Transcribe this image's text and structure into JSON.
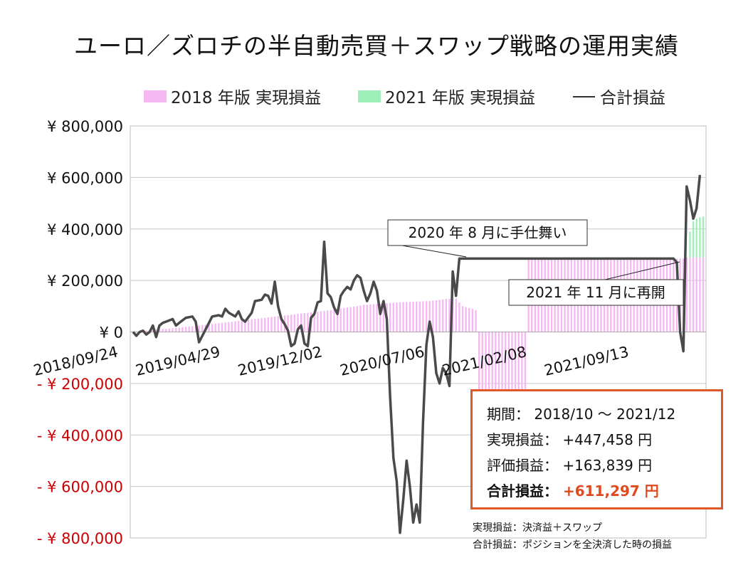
{
  "title": "ユーロ／ズロチの半自動売買＋スワップ戦略の運用実績",
  "colors": {
    "series_2018": "#f5b8f2",
    "series_2021": "#9ef0b8",
    "total_line": "#4a4a4a",
    "negative_tick": "#cc0000",
    "summary_border": "#e0572a",
    "summary_total": "#e04a1e"
  },
  "chart_data": {
    "type": "bar+line",
    "title": "ユーロ／ズロチの半自動売買＋スワップ戦略の運用実績",
    "legend_position": "top",
    "grid": true,
    "ylim": [
      -800000,
      800000
    ],
    "y_ticks": [
      {
        "value": 800000,
        "label": "¥ 800,000"
      },
      {
        "value": 600000,
        "label": "¥ 600,000"
      },
      {
        "value": 400000,
        "label": "¥ 400,000"
      },
      {
        "value": 200000,
        "label": "¥ 200,000"
      },
      {
        "value": 0,
        "label": "¥ 0"
      },
      {
        "value": -200000,
        "label": "- ¥ 200,000"
      },
      {
        "value": -400000,
        "label": "- ¥ 400,000"
      },
      {
        "value": -600000,
        "label": "- ¥ 600,000"
      },
      {
        "value": -800000,
        "label": "- ¥ 800,000"
      }
    ],
    "x_tick_labels": [
      {
        "index": 0,
        "label": "2018/09/24"
      },
      {
        "index": 31,
        "label": "2019/04/29"
      },
      {
        "index": 62,
        "label": "2019/12/02"
      },
      {
        "index": 93,
        "label": "2020/07/06"
      },
      {
        "index": 124,
        "label": "2021/02/08"
      },
      {
        "index": 155,
        "label": "2021/09/13"
      }
    ],
    "num_periods": 174,
    "series": [
      {
        "name": "2018 年版 実現損益",
        "type": "bar",
        "anchors": [
          [
            0,
            0
          ],
          [
            3,
            5000
          ],
          [
            10,
            12000
          ],
          [
            20,
            25000
          ],
          [
            30,
            40000
          ],
          [
            40,
            55000
          ],
          [
            50,
            70000
          ],
          [
            60,
            85000
          ],
          [
            65,
            95000
          ],
          [
            68,
            100000
          ],
          [
            70,
            105000
          ],
          [
            75,
            110000
          ],
          [
            80,
            115000
          ],
          [
            90,
            120000
          ],
          [
            95,
            128000
          ],
          [
            98,
            130000
          ],
          [
            100,
            100000
          ],
          [
            103,
            90000
          ],
          [
            104,
            85000
          ],
          [
            105,
            -510000
          ],
          [
            110,
            -505000
          ],
          [
            115,
            -500000
          ],
          [
            118,
            -495000
          ],
          [
            119,
            -490000
          ],
          [
            120,
            280000
          ],
          [
            125,
            285000
          ],
          [
            155,
            285000
          ],
          [
            167,
            285000
          ],
          [
            168,
            290000
          ],
          [
            173,
            290000
          ]
        ]
      },
      {
        "name": "2021 年版 実現損益",
        "type": "bar",
        "anchors": [
          [
            0,
            0
          ],
          [
            166,
            0
          ],
          [
            167,
            0
          ],
          [
            168,
            0
          ],
          [
            169,
            100000
          ],
          [
            170,
            140000
          ],
          [
            171,
            150000
          ],
          [
            172,
            155000
          ],
          [
            173,
            158000
          ]
        ]
      },
      {
        "name": "合計損益",
        "type": "line",
        "points": [
          [
            0,
            0
          ],
          [
            1,
            -15000
          ],
          [
            2,
            0
          ],
          [
            3,
            5000
          ],
          [
            4,
            -10000
          ],
          [
            5,
            0
          ],
          [
            6,
            25000
          ],
          [
            7,
            -20000
          ],
          [
            8,
            25000
          ],
          [
            9,
            35000
          ],
          [
            11,
            45000
          ],
          [
            12,
            50000
          ],
          [
            13,
            25000
          ],
          [
            14,
            35000
          ],
          [
            16,
            55000
          ],
          [
            18,
            60000
          ],
          [
            19,
            40000
          ],
          [
            20,
            -40000
          ],
          [
            22,
            10000
          ],
          [
            24,
            60000
          ],
          [
            26,
            65000
          ],
          [
            27,
            60000
          ],
          [
            28,
            90000
          ],
          [
            29,
            75000
          ],
          [
            31,
            60000
          ],
          [
            32,
            80000
          ],
          [
            33,
            50000
          ],
          [
            34,
            40000
          ],
          [
            36,
            75000
          ],
          [
            37,
            120000
          ],
          [
            39,
            125000
          ],
          [
            40,
            145000
          ],
          [
            41,
            140000
          ],
          [
            42,
            110000
          ],
          [
            43,
            195000
          ],
          [
            44,
            100000
          ],
          [
            45,
            50000
          ],
          [
            46,
            30000
          ],
          [
            47,
            5000
          ],
          [
            48,
            -55000
          ],
          [
            49,
            -45000
          ],
          [
            50,
            10000
          ],
          [
            51,
            25000
          ],
          [
            52,
            -45000
          ],
          [
            53,
            -55000
          ],
          [
            54,
            55000
          ],
          [
            55,
            70000
          ],
          [
            56,
            115000
          ],
          [
            57,
            120000
          ],
          [
            58,
            350000
          ],
          [
            59,
            150000
          ],
          [
            60,
            135000
          ],
          [
            61,
            95000
          ],
          [
            62,
            70000
          ],
          [
            63,
            140000
          ],
          [
            64,
            160000
          ],
          [
            65,
            175000
          ],
          [
            66,
            165000
          ],
          [
            67,
            200000
          ],
          [
            68,
            220000
          ],
          [
            69,
            210000
          ],
          [
            70,
            160000
          ],
          [
            71,
            120000
          ],
          [
            72,
            150000
          ],
          [
            73,
            195000
          ],
          [
            74,
            160000
          ],
          [
            75,
            70000
          ],
          [
            76,
            120000
          ],
          [
            77,
            50000
          ],
          [
            78,
            -250000
          ],
          [
            79,
            -490000
          ],
          [
            80,
            -580000
          ],
          [
            81,
            -780000
          ],
          [
            82,
            -650000
          ],
          [
            83,
            -500000
          ],
          [
            84,
            -600000
          ],
          [
            85,
            -740000
          ],
          [
            86,
            -670000
          ],
          [
            87,
            -740000
          ],
          [
            88,
            -350000
          ],
          [
            89,
            -50000
          ],
          [
            90,
            40000
          ],
          [
            91,
            -20000
          ],
          [
            92,
            -160000
          ],
          [
            93,
            -200000
          ],
          [
            94,
            -140000
          ],
          [
            95,
            -160000
          ],
          [
            96,
            -210000
          ],
          [
            97,
            235000
          ],
          [
            98,
            140000
          ],
          [
            99,
            285000
          ],
          [
            110,
            285000
          ],
          [
            120,
            285000
          ],
          [
            130,
            285000
          ],
          [
            140,
            285000
          ],
          [
            150,
            285000
          ],
          [
            160,
            285000
          ],
          [
            164,
            285000
          ],
          [
            165,
            270000
          ],
          [
            166,
            0
          ],
          [
            167,
            -75000
          ],
          [
            168,
            565000
          ],
          [
            169,
            510000
          ],
          [
            170,
            440000
          ],
          [
            171,
            480000
          ],
          [
            172,
            610000
          ]
        ]
      }
    ],
    "annotations": [
      {
        "text": "2020 年 8 月に手仕舞い"
      },
      {
        "text": "2021 年 11 月に再開"
      }
    ]
  },
  "summary": {
    "period_label": "期間：",
    "period_value": "2018/10 ～ 2021/12",
    "realized_label": "実現損益：",
    "realized_value": "+447,458 円",
    "unrealized_label": "評価損益：",
    "unrealized_value": "+163,839 円",
    "total_label": "合計損益：",
    "total_value": "+611,297 円"
  },
  "notes": [
    "実現損益：決済益＋スワップ",
    "合計損益：ポジションを全決済した時の損益"
  ]
}
